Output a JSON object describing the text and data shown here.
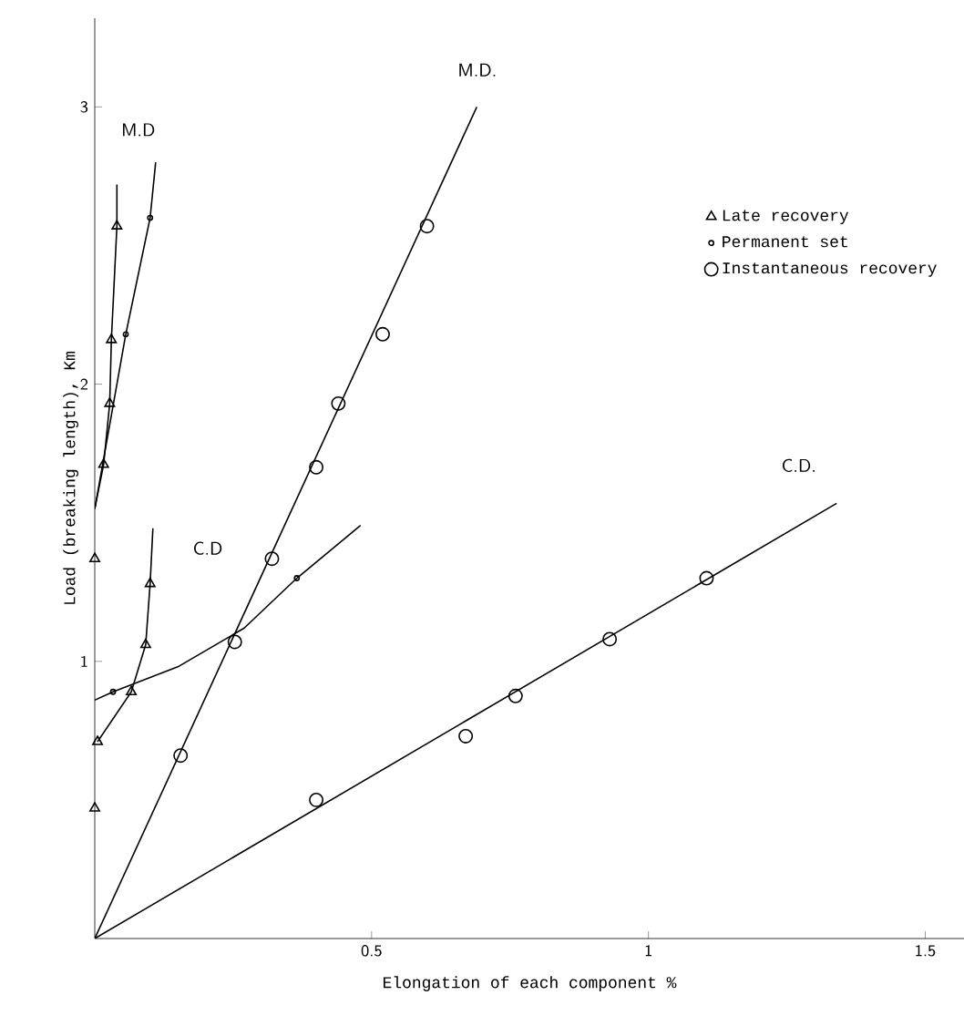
{
  "chart_data": {
    "type": "scatter",
    "xlabel": "Elongation of each component    %",
    "ylabel": "Load (breaking length), Km",
    "xlim": [
      0,
      1.57
    ],
    "ylim": [
      0,
      3.32
    ],
    "xticks": [
      0.5,
      1,
      1.5
    ],
    "yticks": [
      1,
      2,
      3
    ],
    "legend": "top right",
    "series": [
      {
        "type": "line",
        "color": "#000000",
        "marker": "none",
        "x": [
          0,
          0.69
        ],
        "values": [
          0,
          3.0
        ]
      },
      {
        "type": "line",
        "color": "#000000",
        "marker": "none",
        "x": [
          0,
          1.34
        ],
        "values": [
          0,
          1.57
        ]
      },
      {
        "type": "line",
        "color": "#000000",
        "marker": "none",
        "x": [
          0,
          0.033,
          0.15,
          0.27,
          0.365,
          0.48
        ],
        "values": [
          0.86,
          0.89,
          0.98,
          1.12,
          1.3,
          1.49
        ]
      },
      {
        "type": "line",
        "color": "#000000",
        "marker": "none",
        "x": [
          0,
          0.056,
          0.1,
          0.11
        ],
        "values": [
          1.55,
          2.18,
          2.6,
          2.8
        ]
      },
      {
        "type": "line",
        "color": "#000000",
        "marker": "none",
        "x": [
          0,
          0.016,
          0.027,
          0.03,
          0.04,
          0.04
        ],
        "values": [
          1.55,
          1.71,
          1.93,
          2.16,
          2.57,
          2.72
        ]
      },
      {
        "type": "line",
        "color": "#000000",
        "marker": "none",
        "x": [
          0.005,
          0.066,
          0.092,
          0.1,
          0.105
        ],
        "values": [
          0.71,
          0.89,
          1.06,
          1.28,
          1.48
        ]
      },
      {
        "name": "Late recovery",
        "color": "#000000",
        "marker": "triangle",
        "x": [
          0.016,
          0.027,
          0.03,
          0.04,
          0.005,
          0.066,
          0.092,
          0.1,
          0,
          0
        ],
        "values": [
          1.71,
          1.93,
          2.16,
          2.57,
          0.71,
          0.89,
          1.06,
          1.28,
          1.37,
          0.47
        ]
      },
      {
        "name": "Permanent set",
        "color": "#000000",
        "marker": "circle",
        "x": [
          0.056,
          0.1,
          0.033,
          0.365
        ],
        "values": [
          2.18,
          2.6,
          0.89,
          1.3
        ]
      },
      {
        "name": "Instantaneous recovery",
        "color": "#000000",
        "marker": "circle",
        "x": [
          0.155,
          0.253,
          0.32,
          0.4,
          0.44,
          0.52,
          0.6,
          0.4,
          0.67,
          0.76,
          0.93,
          1.105
        ],
        "values": [
          0.66,
          1.07,
          1.37,
          1.7,
          1.93,
          2.18,
          2.57,
          0.5,
          0.73,
          0.875,
          1.08,
          1.3
        ]
      }
    ],
    "annotations": [
      "M.D",
      "M.D.",
      "C.D",
      "C.D."
    ]
  }
}
